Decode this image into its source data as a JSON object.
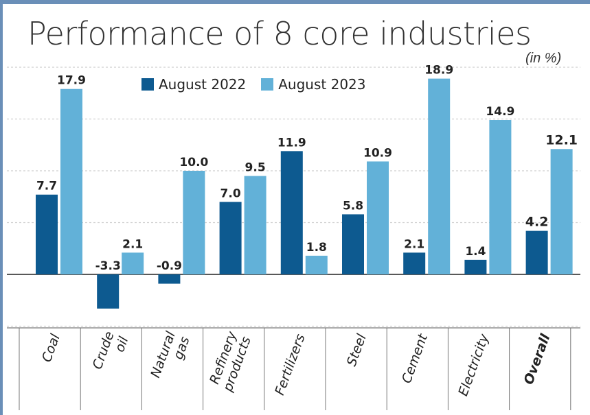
{
  "chart_data": {
    "type": "bar",
    "title": "Performance of 8 core industries",
    "unit_label": "(in %)",
    "categories": [
      [
        "Coal"
      ],
      [
        "Crude",
        "oil"
      ],
      [
        "Natural",
        "gas"
      ],
      [
        "Refinery",
        "products"
      ],
      [
        "Fertilizers"
      ],
      [
        "Steel"
      ],
      [
        "Cement"
      ],
      [
        "Electricity"
      ],
      [
        "Overall"
      ]
    ],
    "emphasized_category": "Overall",
    "series": [
      {
        "name": "August 2022",
        "color": "#0d5a90",
        "values": [
          7.7,
          -3.3,
          -0.9,
          7.0,
          11.9,
          5.8,
          2.1,
          1.4,
          4.2
        ],
        "labels": [
          "7.7",
          "-3.3",
          "-0.9",
          "7.0",
          "11.9",
          "5.8",
          "2.1",
          "1.4",
          "4.2"
        ]
      },
      {
        "name": "August 2023",
        "color": "#62b1d8",
        "values": [
          17.9,
          2.1,
          10.0,
          9.5,
          1.8,
          10.9,
          18.9,
          14.9,
          12.1
        ],
        "labels": [
          "17.9",
          "2.1",
          "10.0",
          "9.5",
          "1.8",
          "10.9",
          "18.9",
          "14.9",
          "12.1"
        ]
      }
    ],
    "ylim": [
      -5,
      20
    ],
    "gridlines": [
      -5,
      0,
      5,
      10,
      15,
      20
    ],
    "grid": true,
    "legend_position": "top-center",
    "xlabel": "",
    "ylabel": ""
  }
}
